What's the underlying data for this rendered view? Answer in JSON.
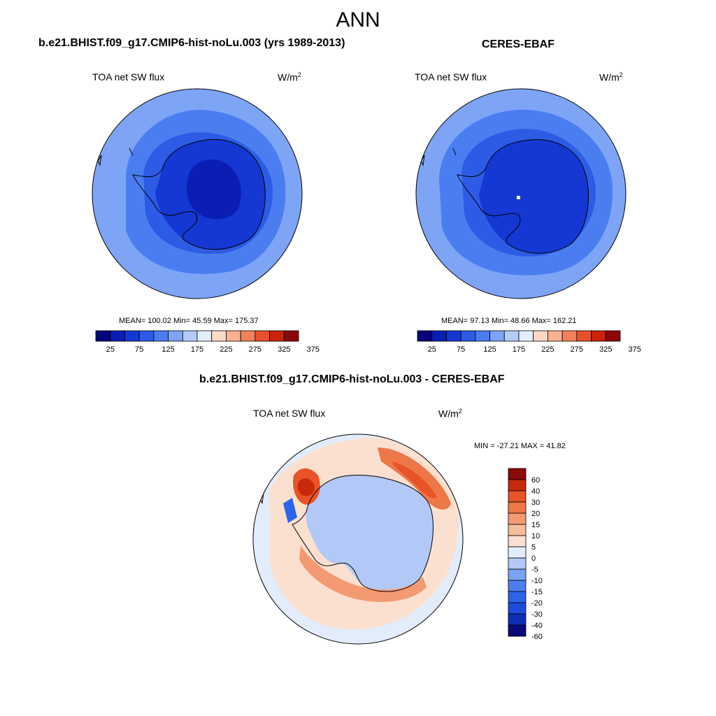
{
  "figure": {
    "title": "ANN"
  },
  "palettes": {
    "abs": [
      "#06057a",
      "#0a1eb4",
      "#1537d2",
      "#2d5be6",
      "#4a7ef0",
      "#7ea4f6",
      "#b4cbf8",
      "#e3eefb",
      "#fbd9c7",
      "#f8b193",
      "#f2815d",
      "#e8502d",
      "#c9230f",
      "#8e0709"
    ],
    "diff": [
      "#0a0a7a",
      "#0f2eb3",
      "#1b4cdc",
      "#2d64ec",
      "#4a7ef0",
      "#7aa2f5",
      "#b2c9f7",
      "#e2ecfb",
      "#fbe0d0",
      "#f7bc9c",
      "#f39a73",
      "#ee7747",
      "#e85327",
      "#c62a0b",
      "#8a0a05"
    ]
  },
  "panels": [
    {
      "id": "model",
      "title": "b.e21.BHIST.f09_g17.CMIP6-hist-noLu.003 (yrs 1989-2013)",
      "variable": "TOA net SW flux",
      "units": "W/m",
      "units_sup": "2",
      "stats": "MEAN= 100.02  Min=  45.59  Max= 175.37",
      "colorbar_labels": [
        "25",
        "75",
        "125",
        "175",
        "225",
        "275",
        "325",
        "375"
      ]
    },
    {
      "id": "obs",
      "title": "CERES-EBAF",
      "variable": "TOA net SW flux",
      "units": "W/m",
      "units_sup": "2",
      "stats": "MEAN=  97.13  Min=  48.66  Max= 162.21",
      "colorbar_labels": [
        "25",
        "75",
        "125",
        "175",
        "225",
        "275",
        "325",
        "375"
      ]
    },
    {
      "id": "diff",
      "title": "b.e21.BHIST.f09_g17.CMIP6-hist-noLu.003 - CERES-EBAF",
      "variable": "TOA net SW flux",
      "units": "W/m",
      "units_sup": "2",
      "stats": "MIN = -27.21 MAX =  41.82",
      "colorbar_labels": [
        "60",
        "40",
        "30",
        "20",
        "15",
        "10",
        "5",
        "0",
        "-5",
        "-10",
        "-15",
        "-20",
        "-30",
        "-40",
        "-60"
      ]
    }
  ]
}
